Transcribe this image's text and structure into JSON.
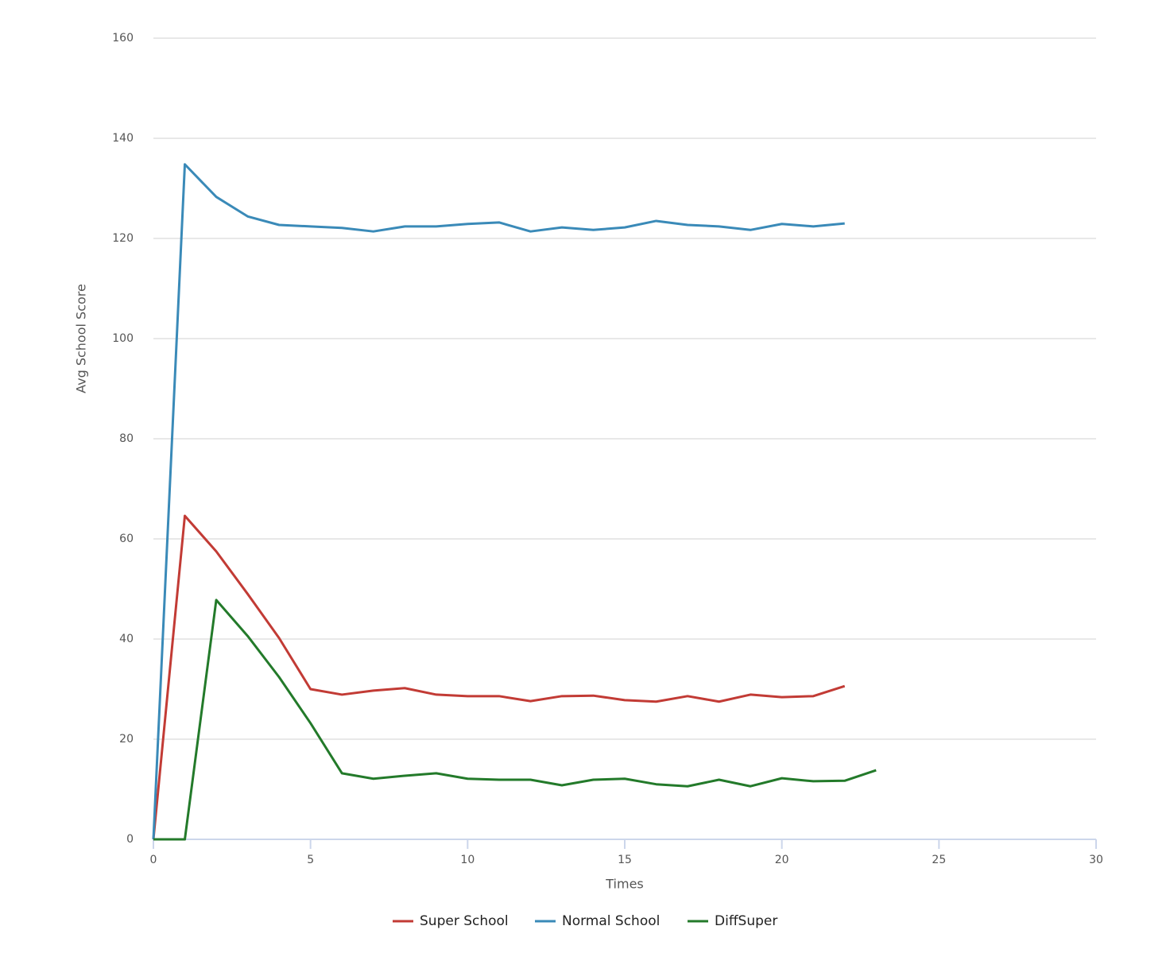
{
  "chart_data": {
    "type": "line",
    "x_label": "Times",
    "y_label": "Avg School Score",
    "x": [
      0,
      1,
      2,
      3,
      4,
      5,
      6,
      7,
      8,
      9,
      10,
      11,
      12,
      13,
      14,
      15,
      16,
      17,
      18,
      19,
      20,
      21,
      22,
      23
    ],
    "series": [
      {
        "name": "Super School",
        "color": "#c23b35",
        "values": [
          0,
          64.6,
          57.5,
          49.0,
          40.2,
          30.0,
          28.9,
          29.7,
          30.2,
          28.9,
          28.6,
          28.6,
          27.6,
          28.6,
          28.7,
          27.8,
          27.5,
          28.6,
          27.5,
          28.9,
          28.4,
          28.6,
          30.6,
          null
        ]
      },
      {
        "name": "Normal School",
        "color": "#3a8ab8",
        "values": [
          0,
          134.8,
          128.3,
          124.4,
          122.7,
          122.4,
          122.1,
          121.4,
          122.4,
          122.4,
          122.9,
          123.2,
          121.4,
          122.2,
          121.7,
          122.2,
          123.5,
          122.7,
          122.4,
          121.7,
          122.9,
          122.4,
          123.0,
          null
        ]
      },
      {
        "name": "DiffSuper",
        "color": "#237a2a",
        "values": [
          0,
          0,
          47.8,
          40.6,
          32.4,
          23.2,
          13.2,
          12.1,
          12.7,
          13.2,
          12.1,
          11.9,
          11.9,
          10.8,
          11.9,
          12.1,
          11.0,
          10.6,
          11.9,
          10.6,
          12.2,
          11.6,
          11.7,
          13.8
        ]
      }
    ],
    "xlim": [
      0,
      30
    ],
    "xticks": [
      0,
      5,
      10,
      15,
      20,
      25,
      30
    ],
    "ylim": [
      0,
      160
    ],
    "yticks": [
      0,
      20,
      40,
      60,
      80,
      100,
      120,
      140,
      160
    ],
    "grid": true,
    "legend": "bottom"
  }
}
